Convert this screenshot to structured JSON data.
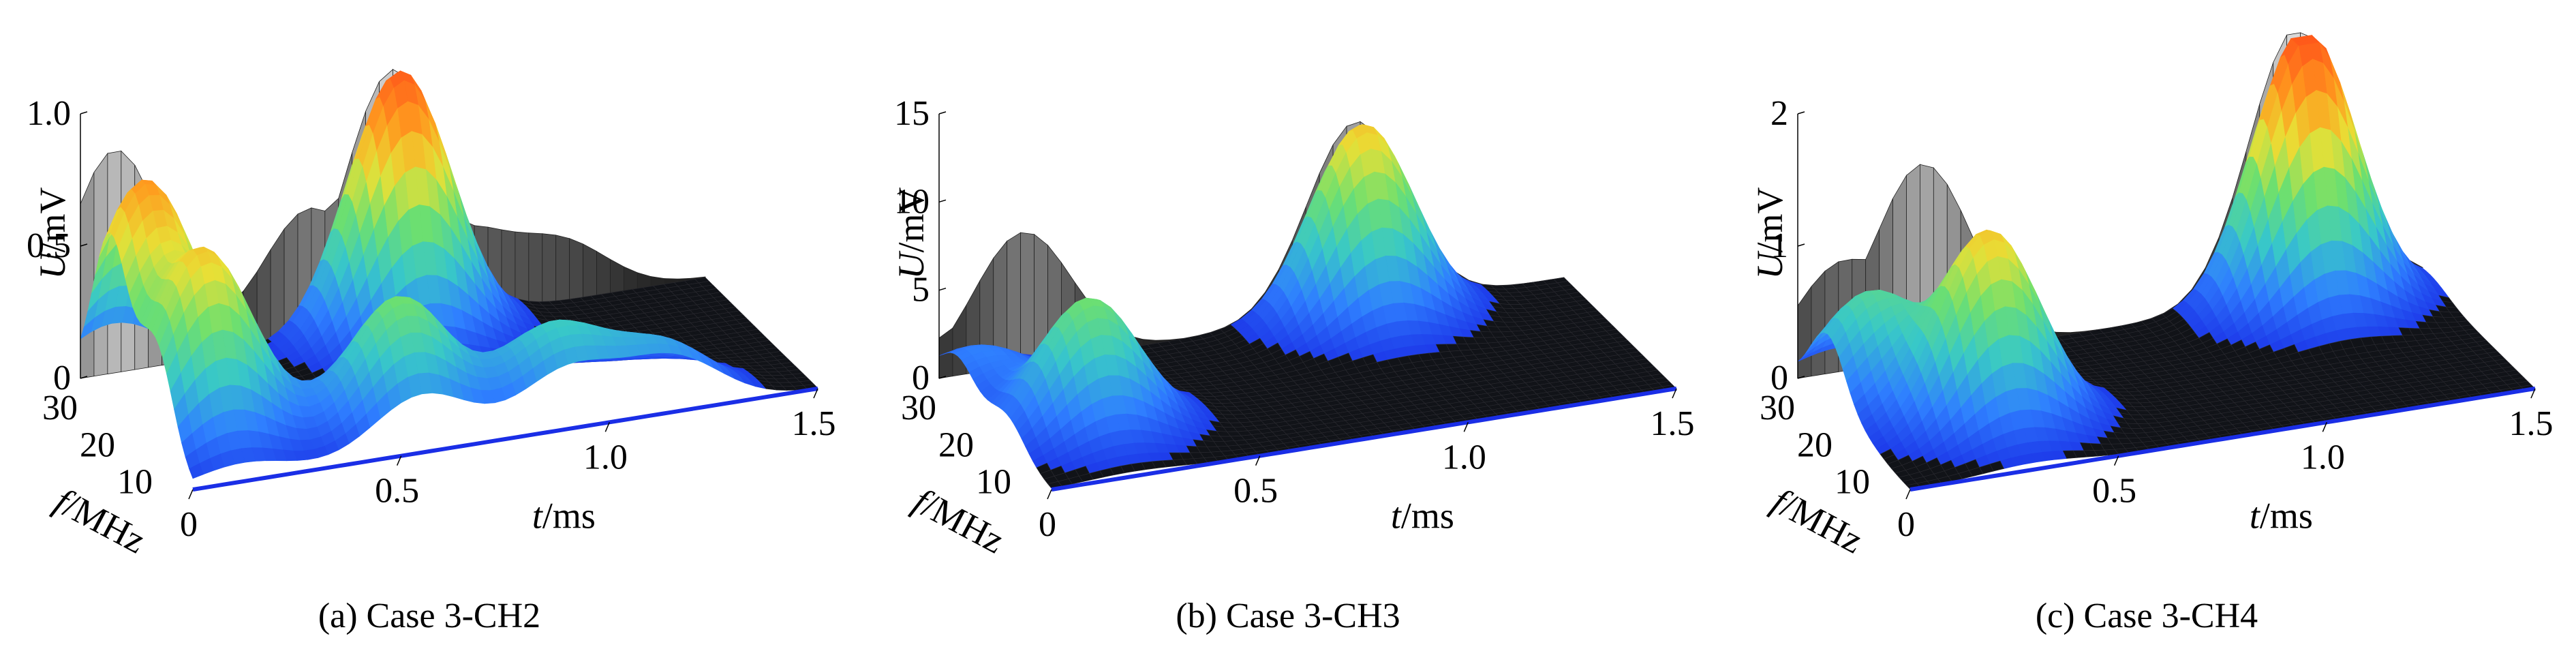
{
  "figure": {
    "panels": [
      {
        "caption": "(a) Case 3-CH2"
      },
      {
        "caption": "(b) Case 3-CH3"
      },
      {
        "caption": "(c) Case 3-CH4"
      }
    ]
  },
  "colors": {
    "surface_colormap": [
      "#1a2ee6",
      "#2f7fff",
      "#38c8c8",
      "#6ee06e",
      "#e8e036",
      "#ff9a1e",
      "#ff5a1a"
    ],
    "shadow_colormap": [
      "#000000",
      "#666666",
      "#d8d8d8"
    ]
  },
  "chart_data": [
    {
      "type": "surface",
      "title": "",
      "zlabel_var": "U",
      "zlabel_unit": "/mV",
      "ylabel_var": "f",
      "ylabel_unit": "/MHz",
      "xlabel_var": "t",
      "xlabel_unit": "/ms",
      "zlim": [
        0,
        1.0
      ],
      "zticks": [
        "0",
        "0.5",
        "1.0"
      ],
      "ylim": [
        0,
        30
      ],
      "yticks": [
        "30",
        "20",
        "10"
      ],
      "xlim": [
        0,
        1.5
      ],
      "xticks": [
        "0",
        "0.5",
        "1.0",
        "1.5"
      ],
      "peaks": [
        {
          "t": 0.08,
          "f": 22,
          "U": 0.82
        },
        {
          "t": 0.12,
          "f": 10,
          "U": 0.7
        },
        {
          "t": 0.55,
          "f": 6,
          "U": 0.5
        },
        {
          "t": 0.9,
          "f": 4,
          "U": 0.32
        },
        {
          "t": 1.15,
          "f": 2,
          "U": 0.22
        },
        {
          "t": 0.75,
          "f": 28,
          "U": 1.0
        }
      ]
    },
    {
      "type": "surface",
      "title": "",
      "zlabel_var": "U",
      "zlabel_unit": "/mV",
      "ylabel_var": "f",
      "ylabel_unit": "/MHz",
      "xlabel_var": "t",
      "xlabel_unit": "/ms",
      "zlim": [
        0,
        15
      ],
      "zticks": [
        "0",
        "5",
        "10",
        "15"
      ],
      "ylim": [
        0,
        30
      ],
      "yticks": [
        "30",
        "20",
        "10"
      ],
      "xlim": [
        0,
        1.5
      ],
      "xticks": [
        "0",
        "0.5",
        "1.0",
        "1.5"
      ],
      "peaks": [
        {
          "t": 0.2,
          "f": 12,
          "U": 7.5
        },
        {
          "t": 0.05,
          "f": 25,
          "U": 2.5
        },
        {
          "t": 1.0,
          "f": 28,
          "U": 11
        }
      ]
    },
    {
      "type": "surface",
      "title": "",
      "zlabel_var": "U",
      "zlabel_unit": "/mV",
      "ylabel_var": "f",
      "ylabel_unit": "/MHz",
      "xlabel_var": "t",
      "xlabel_unit": "/ms",
      "zlim": [
        0,
        2
      ],
      "zticks": [
        "0",
        "1",
        "2"
      ],
      "ylim": [
        0,
        30
      ],
      "yticks": [
        "30",
        "20",
        "10"
      ],
      "xlim": [
        0,
        1.5
      ],
      "xticks": [
        "0",
        "0.5",
        "1.0",
        "1.5"
      ],
      "peaks": [
        {
          "t": 0.3,
          "f": 12,
          "U": 1.45
        },
        {
          "t": 0.1,
          "f": 22,
          "U": 0.8
        },
        {
          "t": 1.2,
          "f": 28,
          "U": 2.1
        }
      ]
    }
  ]
}
